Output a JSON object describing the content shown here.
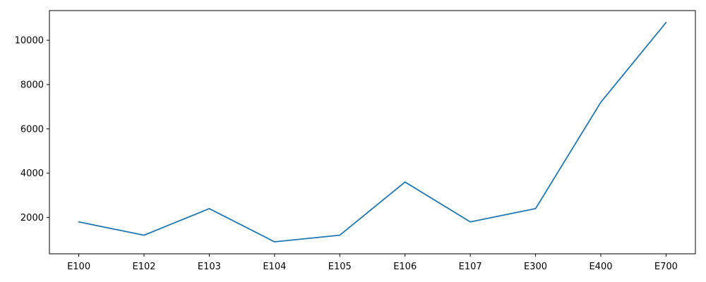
{
  "chart_data": {
    "type": "line",
    "categories": [
      "E100",
      "E102",
      "E103",
      "E104",
      "E105",
      "E106",
      "E107",
      "E300",
      "E400",
      "E700"
    ],
    "series": [
      {
        "values": [
          1800,
          1200,
          2400,
          900,
          1200,
          3600,
          1800,
          2400,
          7200,
          10800
        ]
      }
    ],
    "title": "",
    "xlabel": "",
    "ylabel": "",
    "yticks": [
      2000,
      4000,
      6000,
      8000,
      10000
    ],
    "ylim": [
      360,
      11340
    ],
    "grid": false,
    "line_color": "#1f77b4"
  }
}
